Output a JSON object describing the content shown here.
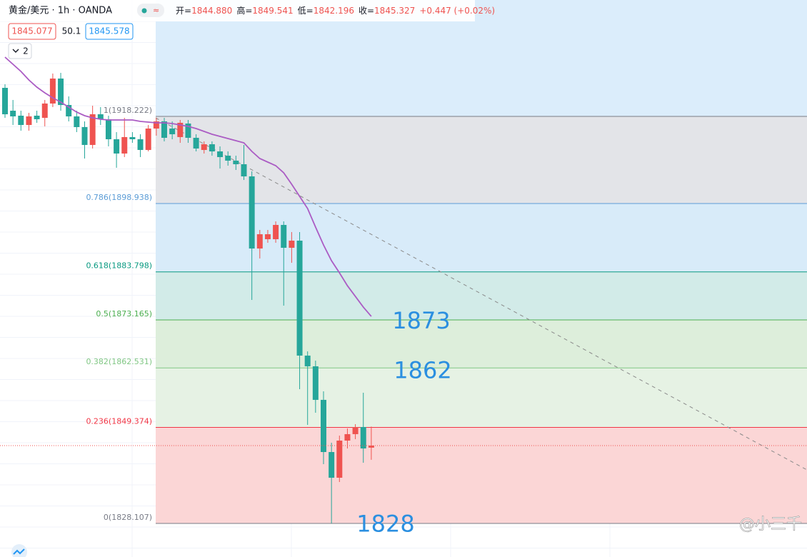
{
  "header": {
    "symbol": "黄金/美元 · 1h · OANDA",
    "ohlc": [
      {
        "label": "开=",
        "value": "1844.880"
      },
      {
        "label": "高=",
        "value": "1849.541"
      },
      {
        "label": "低=",
        "value": "1842.196"
      },
      {
        "label": "收=",
        "value": "1845.327"
      }
    ],
    "change": "+0.447 (+0.02%)",
    "bid": "1845.077",
    "spread": "50.1",
    "ask": "1845.578",
    "indicators": "2"
  },
  "watermark": "@小三千",
  "chart_data": {
    "type": "candlestick",
    "up_color": "#ef5350",
    "down_color": "#26a69a",
    "ylim": [
      1820.67,
      1943.99
    ],
    "open": [
      1924.54,
      1919.48,
      1918.38,
      1916.32,
      1918.38,
      1917.9,
      1921.07,
      1926.6,
      1920.75,
      1918.22,
      1915.85,
      1911.9,
      1918.69,
      1917.59,
      1913.16,
      1910.0,
      1913.64,
      1913.16,
      1910.79,
      1915.53,
      1917.11,
      1915.53,
      1913.64,
      1916.64,
      1913.48,
      1910.79,
      1912.05,
      1910.47,
      1909.52,
      1908.42,
      1907.63,
      1904.94,
      1888.97,
      1891.03,
      1891.03,
      1894.19,
      1889.13,
      1890.71,
      1865.26,
      1862.89,
      1855.46,
      1843.91,
      1838.22,
      1846.44,
      1847.87,
      1849.45,
      1844.88
    ],
    "high": [
      1925.33,
      1921.86,
      1919.48,
      1919.01,
      1919.48,
      1921.86,
      1927.71,
      1927.86,
      1922.65,
      1919.48,
      1917.11,
      1920.59,
      1920.28,
      1918.38,
      1914.74,
      1917.9,
      1914.74,
      1914.27,
      1916.32,
      1917.9,
      1917.9,
      1917.11,
      1917.43,
      1917.43,
      1914.27,
      1912.69,
      1912.69,
      1911.58,
      1910.47,
      1909.52,
      1911.9,
      1906.05,
      1893.08,
      1893.08,
      1894.98,
      1894.98,
      1892.61,
      1892.61,
      1866.2,
      1864.15,
      1857.35,
      1845.97,
      1847.55,
      1849.13,
      1850.08,
      1857.04,
      1849.541
    ],
    "low": [
      1917.9,
      1916.32,
      1915.06,
      1915.06,
      1916.8,
      1916.01,
      1920.28,
      1919.48,
      1917.11,
      1914.74,
      1908.89,
      1911.11,
      1916.32,
      1911.58,
      1906.84,
      1909.21,
      1912.37,
      1909.21,
      1910.47,
      1913.95,
      1912.69,
      1913.16,
      1912.37,
      1912.37,
      1910.47,
      1910.0,
      1909.52,
      1906.68,
      1907.31,
      1906.36,
      1904.15,
      1877.59,
      1886.76,
      1890.24,
      1890.24,
      1876.32,
      1885.81,
      1857.83,
      1849.92,
      1852.61,
      1841.23,
      1828.11,
      1837.27,
      1844.7,
      1846.76,
      1841.54,
      1842.196
    ],
    "close": [
      1918.69,
      1918.22,
      1916.32,
      1918.22,
      1917.59,
      1921.07,
      1926.6,
      1920.75,
      1918.22,
      1915.85,
      1911.9,
      1918.69,
      1917.59,
      1913.16,
      1910.0,
      1913.64,
      1913.16,
      1910.79,
      1915.53,
      1917.11,
      1913.48,
      1914.27,
      1916.8,
      1913.48,
      1911.11,
      1912.05,
      1910.47,
      1909.21,
      1908.42,
      1907.63,
      1904.94,
      1888.97,
      1892.13,
      1892.13,
      1894.19,
      1889.13,
      1890.71,
      1865.26,
      1862.89,
      1855.46,
      1843.91,
      1838.22,
      1846.44,
      1847.87,
      1849.45,
      1844.7,
      1845.327
    ],
    "ma": {
      "color": "#ab5cc4",
      "values": [
        1931.34,
        1929.76,
        1928.18,
        1926.28,
        1924.7,
        1923.43,
        1922.33,
        1921.38,
        1920.28,
        1919.17,
        1918.38,
        1917.9,
        1917.59,
        1917.43,
        1917.43,
        1917.43,
        1917.43,
        1917.11,
        1916.96,
        1916.8,
        1916.8,
        1916.64,
        1916.32,
        1916.01,
        1915.53,
        1914.9,
        1914.27,
        1913.79,
        1913.32,
        1912.84,
        1912.37,
        1910.47,
        1908.89,
        1908.1,
        1907.31,
        1905.73,
        1903.2,
        1900.51,
        1897.82,
        1893.71,
        1889.76,
        1886.28,
        1883.59,
        1880.74,
        1878.37,
        1876.0,
        1873.94
      ]
    },
    "fib_levels": [
      {
        "value": 1918.222,
        "label": "1(1918.222)",
        "color": "#787b86",
        "fill": "#e3e4e8"
      },
      {
        "value": 1898.938,
        "label": "0.786(1898.938)",
        "color": "#5b9cd6",
        "fill": "#d8ebf9"
      },
      {
        "value": 1883.798,
        "label": "0.618(1883.798)",
        "color": "#089981",
        "fill": "#d2ebe8"
      },
      {
        "value": 1873.165,
        "label": "0.5(1873.165)",
        "color": "#4caf50",
        "fill": "#ddeedb"
      },
      {
        "value": 1862.531,
        "label": "0.382(1862.531)",
        "color": "#81c784",
        "fill": "#e6f2e4"
      },
      {
        "value": 1849.374,
        "label": "0.236(1849.374)",
        "color": "#f23645",
        "fill": "#fbd6d6"
      },
      {
        "value": 1828.107,
        "label": "0(1828.107)",
        "color": "#787b86"
      }
    ],
    "fib_extension_fill": "#dbedfb",
    "annotations": [
      1873,
      1862,
      1828
    ],
    "annotation_color": "#2b8fe0"
  }
}
